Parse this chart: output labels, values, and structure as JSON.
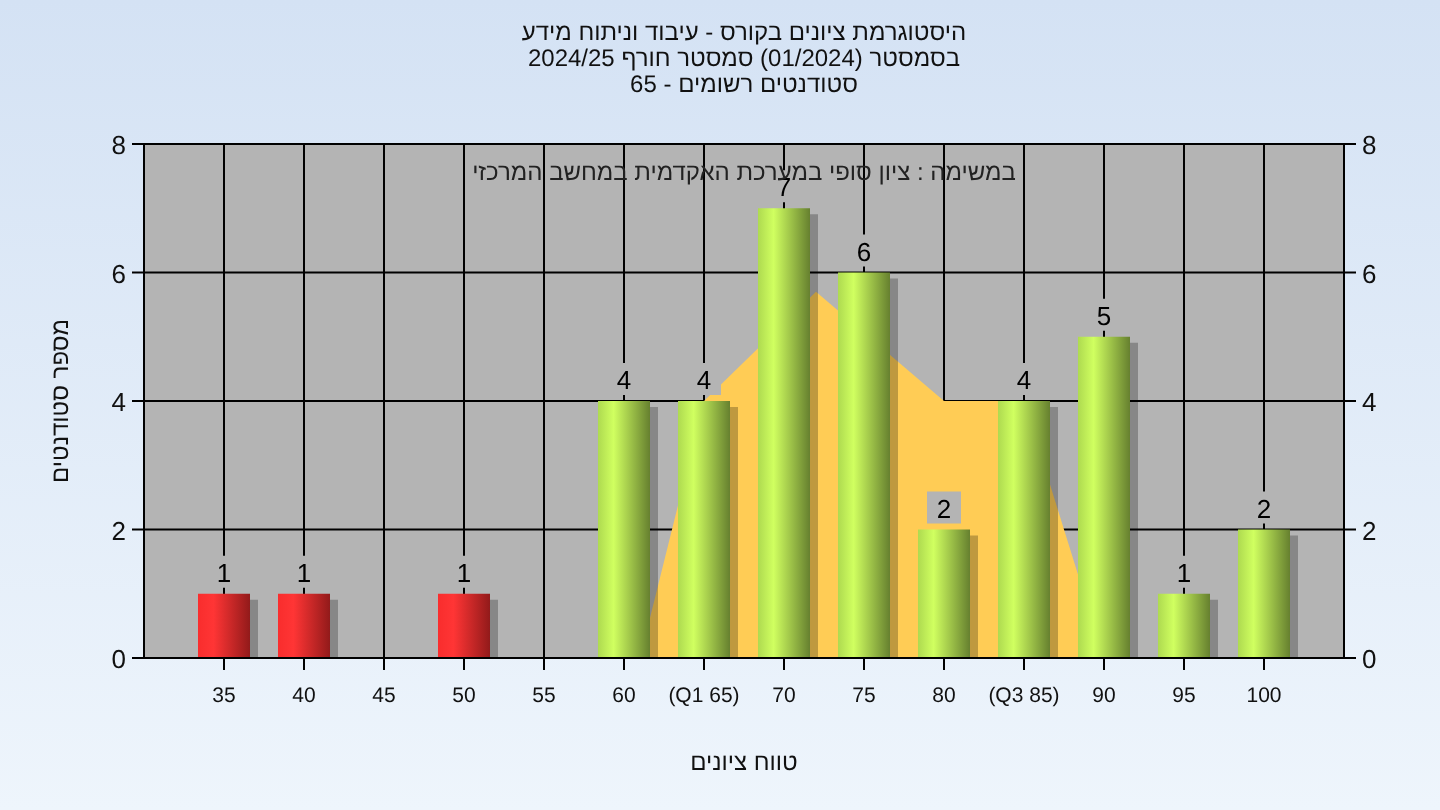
{
  "chart_data": {
    "type": "bar",
    "title": "היסטוגרמת ציונים בקורס - עיבוד וניתוח מידע\nבסמסטר  (01/2024)  סמסטר חורף 2024/25\nסטודנטים רשומים - 65",
    "xlabel": "טווח ציונים",
    "ylabel": "מספר סטודנטים",
    "annotations": [
      "במשימה : ציון סופי במערכת האקדמית במחשב המרכזי"
    ],
    "x": [
      35,
      40,
      45,
      50,
      55,
      60,
      65,
      70,
      75,
      80,
      85,
      90,
      95,
      100
    ],
    "series": [
      {
        "type": "area",
        "color": "#ffcc55",
        "x": [
          61,
          65,
          72,
          80,
          85,
          90
        ],
        "values": [
          0,
          4,
          5.7,
          4,
          4,
          0
        ]
      },
      {
        "colors": [
          "#e02828",
          "#e02828",
          "#e02828",
          "#e02828",
          "#e02828",
          "#9cc448",
          "#9cc448",
          "#9cc448",
          "#9cc448",
          "#9cc448",
          "#9cc448",
          "#9cc448",
          "#9cc448",
          "#9cc448"
        ],
        "values": [
          1,
          1,
          0,
          1,
          0,
          4,
          4,
          7,
          6,
          2,
          4,
          5,
          1,
          2
        ],
        "value_labels": [
          "1",
          "1",
          null,
          "1",
          null,
          "4",
          "4",
          "7",
          "6",
          "2",
          "4",
          "5",
          "1",
          "2"
        ]
      }
    ],
    "xlim": [
      30,
      105
    ],
    "xticks": [
      35,
      40,
      45,
      50,
      55,
      60,
      {
        "value": 65,
        "label": "(Q1 65)"
      },
      70,
      75,
      80,
      {
        "value": 85,
        "label": "(Q3 85)"
      },
      90,
      95,
      100
    ],
    "ylim": [
      0,
      8
    ],
    "yticks": [
      0,
      2,
      4,
      6,
      8
    ],
    "y2lim": [
      0,
      8
    ],
    "y2ticks": [
      0,
      2,
      4,
      6,
      8
    ],
    "grid": true
  }
}
